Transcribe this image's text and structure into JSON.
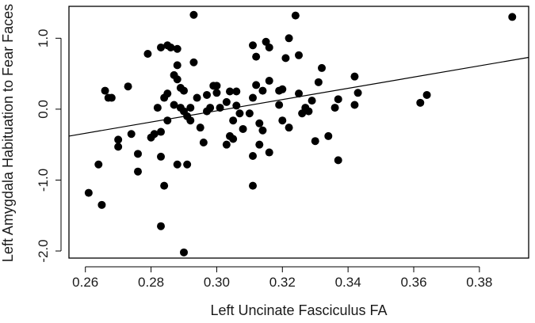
{
  "chart_data": {
    "type": "scatter",
    "title": "",
    "xlabel": "Left Uncinate Fasciculus FA",
    "ylabel": "Left Amygdala Habituation to Fear Faces",
    "xlim": [
      0.255,
      0.395
    ],
    "ylim": [
      -2.1,
      1.45
    ],
    "x_ticks": [
      0.26,
      0.28,
      0.3,
      0.32,
      0.34,
      0.36,
      0.38
    ],
    "x_tick_labels": [
      "0.26",
      "0.28",
      "0.30",
      "0.32",
      "0.34",
      "0.36",
      "0.38"
    ],
    "y_ticks": [
      -2.0,
      -1.0,
      0.0,
      1.0
    ],
    "y_tick_labels": [
      "-2.0",
      "-1.0",
      "0.0",
      "1.0"
    ],
    "grid": false,
    "point_color": "#000000",
    "fit_line": {
      "x": [
        0.255,
        0.395
      ],
      "y": [
        -0.38,
        0.73
      ]
    },
    "points": [
      {
        "x": 0.261,
        "y": -1.18
      },
      {
        "x": 0.264,
        "y": -0.78
      },
      {
        "x": 0.265,
        "y": -1.35
      },
      {
        "x": 0.266,
        "y": 0.26
      },
      {
        "x": 0.267,
        "y": 0.16
      },
      {
        "x": 0.268,
        "y": 0.16
      },
      {
        "x": 0.27,
        "y": -0.43
      },
      {
        "x": 0.27,
        "y": -0.53
      },
      {
        "x": 0.273,
        "y": 0.32
      },
      {
        "x": 0.274,
        "y": -0.35
      },
      {
        "x": 0.276,
        "y": -0.63
      },
      {
        "x": 0.276,
        "y": -0.88
      },
      {
        "x": 0.279,
        "y": 0.78
      },
      {
        "x": 0.28,
        "y": -0.4
      },
      {
        "x": 0.281,
        "y": -0.35
      },
      {
        "x": 0.282,
        "y": 0.02
      },
      {
        "x": 0.283,
        "y": 0.87
      },
      {
        "x": 0.283,
        "y": -0.32
      },
      {
        "x": 0.283,
        "y": -0.67
      },
      {
        "x": 0.283,
        "y": -1.65
      },
      {
        "x": 0.284,
        "y": -1.08
      },
      {
        "x": 0.284,
        "y": 0.16
      },
      {
        "x": 0.285,
        "y": 0.9
      },
      {
        "x": 0.285,
        "y": 0.22
      },
      {
        "x": 0.285,
        "y": -0.16
      },
      {
        "x": 0.286,
        "y": 0.87
      },
      {
        "x": 0.287,
        "y": 0.48
      },
      {
        "x": 0.287,
        "y": 0.06
      },
      {
        "x": 0.288,
        "y": 0.85
      },
      {
        "x": 0.288,
        "y": 0.62
      },
      {
        "x": 0.288,
        "y": 0.42
      },
      {
        "x": 0.288,
        "y": -0.78
      },
      {
        "x": 0.289,
        "y": 0.3
      },
      {
        "x": 0.289,
        "y": 0.02
      },
      {
        "x": 0.29,
        "y": -0.03
      },
      {
        "x": 0.29,
        "y": 0.26
      },
      {
        "x": 0.29,
        "y": -2.02
      },
      {
        "x": 0.291,
        "y": -0.1
      },
      {
        "x": 0.291,
        "y": -0.78
      },
      {
        "x": 0.292,
        "y": -0.16
      },
      {
        "x": 0.292,
        "y": 0.02
      },
      {
        "x": 0.293,
        "y": 1.33
      },
      {
        "x": 0.293,
        "y": 0.66
      },
      {
        "x": 0.294,
        "y": 0.16
      },
      {
        "x": 0.295,
        "y": -0.26
      },
      {
        "x": 0.296,
        "y": -0.47
      },
      {
        "x": 0.297,
        "y": -0.03
      },
      {
        "x": 0.297,
        "y": 0.2
      },
      {
        "x": 0.298,
        "y": 0.02
      },
      {
        "x": 0.299,
        "y": 0.33
      },
      {
        "x": 0.3,
        "y": 0.33
      },
      {
        "x": 0.3,
        "y": 0.23
      },
      {
        "x": 0.301,
        "y": 0.02
      },
      {
        "x": 0.303,
        "y": 0.1
      },
      {
        "x": 0.303,
        "y": -0.5
      },
      {
        "x": 0.304,
        "y": -0.38
      },
      {
        "x": 0.304,
        "y": 0.25
      },
      {
        "x": 0.305,
        "y": -0.42
      },
      {
        "x": 0.305,
        "y": -0.16
      },
      {
        "x": 0.306,
        "y": 0.25
      },
      {
        "x": 0.306,
        "y": 0.05
      },
      {
        "x": 0.307,
        "y": -0.06
      },
      {
        "x": 0.308,
        "y": -0.28
      },
      {
        "x": 0.31,
        "y": -0.06
      },
      {
        "x": 0.311,
        "y": 0.9
      },
      {
        "x": 0.311,
        "y": 0.16
      },
      {
        "x": 0.311,
        "y": -0.66
      },
      {
        "x": 0.311,
        "y": -1.08
      },
      {
        "x": 0.312,
        "y": 0.74
      },
      {
        "x": 0.312,
        "y": 0.34
      },
      {
        "x": 0.313,
        "y": -0.2
      },
      {
        "x": 0.313,
        "y": -0.5
      },
      {
        "x": 0.314,
        "y": -0.3
      },
      {
        "x": 0.314,
        "y": 0.26
      },
      {
        "x": 0.315,
        "y": 0.95
      },
      {
        "x": 0.316,
        "y": 0.87
      },
      {
        "x": 0.316,
        "y": 0.4
      },
      {
        "x": 0.316,
        "y": -0.61
      },
      {
        "x": 0.319,
        "y": 0.26
      },
      {
        "x": 0.319,
        "y": 0.06
      },
      {
        "x": 0.32,
        "y": 0.28
      },
      {
        "x": 0.32,
        "y": -0.16
      },
      {
        "x": 0.321,
        "y": 0.72
      },
      {
        "x": 0.322,
        "y": 1.0
      },
      {
        "x": 0.322,
        "y": -0.26
      },
      {
        "x": 0.324,
        "y": 1.32
      },
      {
        "x": 0.325,
        "y": 0.76
      },
      {
        "x": 0.325,
        "y": 0.22
      },
      {
        "x": 0.326,
        "y": -0.06
      },
      {
        "x": 0.327,
        "y": 0.02
      },
      {
        "x": 0.328,
        "y": -0.03
      },
      {
        "x": 0.329,
        "y": 0.12
      },
      {
        "x": 0.33,
        "y": -0.45
      },
      {
        "x": 0.331,
        "y": 0.38
      },
      {
        "x": 0.332,
        "y": 0.58
      },
      {
        "x": 0.334,
        "y": -0.38
      },
      {
        "x": 0.336,
        "y": 0.02
      },
      {
        "x": 0.337,
        "y": 0.14
      },
      {
        "x": 0.337,
        "y": -0.72
      },
      {
        "x": 0.342,
        "y": 0.46
      },
      {
        "x": 0.342,
        "y": 0.06
      },
      {
        "x": 0.343,
        "y": 0.23
      },
      {
        "x": 0.362,
        "y": 0.09
      },
      {
        "x": 0.364,
        "y": 0.2
      },
      {
        "x": 0.39,
        "y": 1.3
      }
    ]
  }
}
